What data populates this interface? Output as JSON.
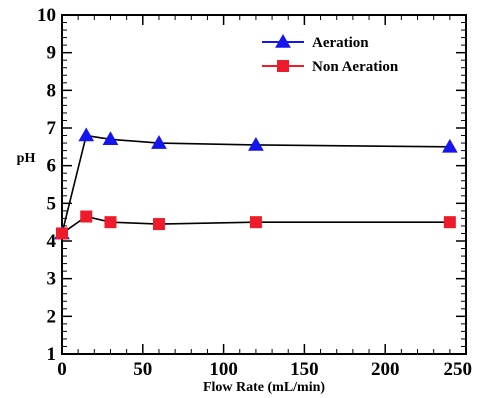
{
  "chart_data": {
    "type": "line",
    "title": "",
    "xlabel": "Flow Rate (mL/min)",
    "ylabel": "pH",
    "xlim": [
      0,
      250
    ],
    "ylim": [
      1,
      10
    ],
    "x_ticks": [
      "0",
      "50",
      "100",
      "150",
      "200",
      "250"
    ],
    "y_ticks": [
      "1",
      "2",
      "3",
      "4",
      "5",
      "6",
      "7",
      "8",
      "9",
      "10"
    ],
    "grid": false,
    "legend_position": "top-right",
    "series": [
      {
        "name": "Aeration",
        "marker": "triangle",
        "color": "#1515f0",
        "x": [
          0,
          15,
          30,
          60,
          120,
          240
        ],
        "y": [
          4.2,
          6.8,
          6.7,
          6.6,
          6.55,
          6.5
        ]
      },
      {
        "name": "Non Aeration",
        "marker": "square",
        "color": "#ee1c2a",
        "x": [
          0,
          15,
          30,
          60,
          120,
          240
        ],
        "y": [
          4.2,
          4.65,
          4.5,
          4.45,
          4.5,
          4.5
        ]
      }
    ]
  }
}
